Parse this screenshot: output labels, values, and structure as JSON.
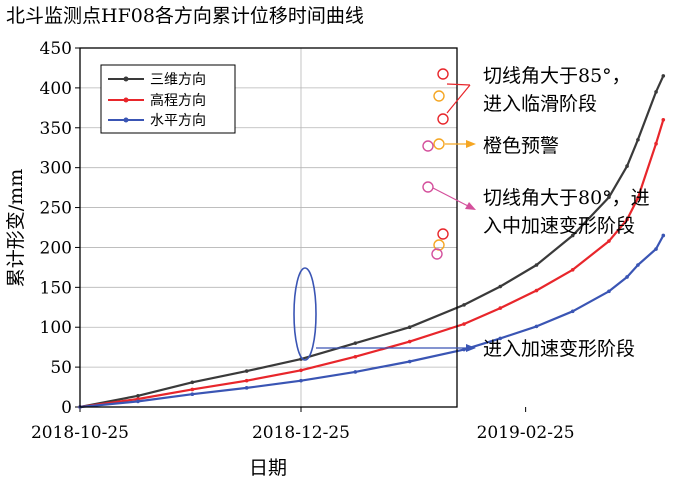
{
  "chart_data": {
    "type": "line",
    "title": "北斗监测点HF08各方向累计位移时间曲线",
    "xlabel": "日期",
    "ylabel": "累计形变/mm",
    "x_ticks": [
      "2018-10-25",
      "2018-12-25",
      "2019-02-25"
    ],
    "ylim": [
      0,
      450
    ],
    "y_ticks": [
      0,
      50,
      100,
      150,
      200,
      250,
      300,
      350,
      400,
      450
    ],
    "grid": true,
    "legend_position": "top-left",
    "colors": {
      "三维方向": "#3a3a3a",
      "高程方向": "#e8262b",
      "水平方向": "#3a55b4"
    },
    "series": [
      {
        "name": "三维方向",
        "color": "#3a3a3a",
        "points": [
          [
            "2018-10-25",
            0
          ],
          [
            "2018-11-10",
            14
          ],
          [
            "2018-11-25",
            31
          ],
          [
            "2018-12-10",
            45
          ],
          [
            "2018-12-25",
            60
          ],
          [
            "2019-01-09",
            80
          ],
          [
            "2019-01-24",
            100
          ],
          [
            "2019-02-08",
            128
          ],
          [
            "2019-02-18",
            151
          ],
          [
            "2019-02-28",
            178
          ],
          [
            "2019-03-10",
            215
          ],
          [
            "2019-03-20",
            263
          ],
          [
            "2019-03-25",
            302
          ],
          [
            "2019-03-28",
            335
          ],
          [
            "2019-04-02",
            395
          ],
          [
            "2019-04-04",
            415
          ]
        ]
      },
      {
        "name": "高程方向",
        "color": "#e8262b",
        "points": [
          [
            "2018-10-25",
            0
          ],
          [
            "2018-11-10",
            10
          ],
          [
            "2018-11-25",
            22
          ],
          [
            "2018-12-10",
            33
          ],
          [
            "2018-12-25",
            46
          ],
          [
            "2019-01-09",
            63
          ],
          [
            "2019-01-24",
            82
          ],
          [
            "2019-02-08",
            104
          ],
          [
            "2019-02-18",
            124
          ],
          [
            "2019-02-28",
            146
          ],
          [
            "2019-03-10",
            172
          ],
          [
            "2019-03-20",
            208
          ],
          [
            "2019-03-25",
            235
          ],
          [
            "2019-03-28",
            262
          ],
          [
            "2019-04-02",
            330
          ],
          [
            "2019-04-04",
            360
          ]
        ]
      },
      {
        "name": "水平方向",
        "color": "#3a55b4",
        "points": [
          [
            "2018-10-25",
            0
          ],
          [
            "2018-11-10",
            7
          ],
          [
            "2018-11-25",
            16
          ],
          [
            "2018-12-10",
            24
          ],
          [
            "2018-12-25",
            33
          ],
          [
            "2019-01-09",
            44
          ],
          [
            "2019-01-24",
            57
          ],
          [
            "2019-02-08",
            72
          ],
          [
            "2019-02-18",
            86
          ],
          [
            "2019-02-28",
            101
          ],
          [
            "2019-03-10",
            120
          ],
          [
            "2019-03-20",
            145
          ],
          [
            "2019-03-25",
            163
          ],
          [
            "2019-03-28",
            178
          ],
          [
            "2019-04-02",
            198
          ],
          [
            "2019-04-04",
            215
          ]
        ]
      }
    ],
    "annotations": [
      {
        "text_lines": [
          "切线角大于85°，",
          "进入临滑阶段"
        ],
        "color": "#e8262b"
      },
      {
        "text_lines": [
          "橙色预警"
        ],
        "color": "#f5a623"
      },
      {
        "text_lines": [
          "切线角大于80°，进",
          "入中加速变形阶段"
        ],
        "color": "#d4509c"
      },
      {
        "text_lines": [
          "进入加速变形阶段"
        ],
        "color": "#3a55b4"
      }
    ]
  }
}
